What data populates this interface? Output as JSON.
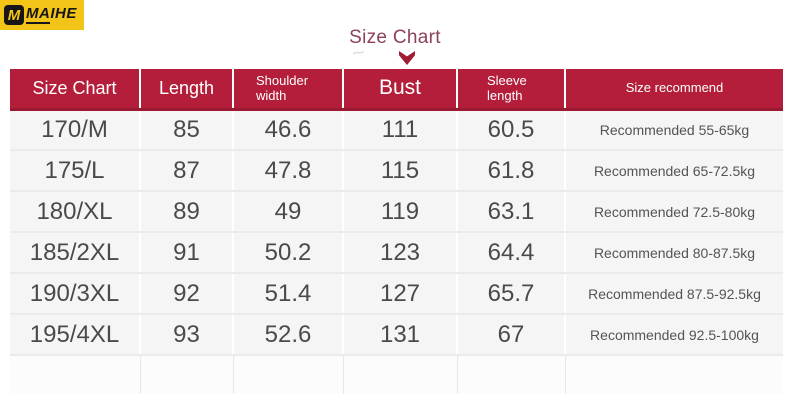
{
  "brand": {
    "logo_letter": "M",
    "logo_text": "MAIHE"
  },
  "title": "Size Chart",
  "watermark_glyph": "~",
  "chart_data": {
    "type": "table",
    "title": "Size Chart",
    "columns": [
      "Size Chart",
      "Length",
      "Shoulder width",
      "Bust",
      "Sleeve length",
      "Size recommend"
    ],
    "rows": [
      [
        "170/M",
        "85",
        "46.6",
        "111",
        "60.5",
        "Recommended 55-65kg"
      ],
      [
        "175/L",
        "87",
        "47.8",
        "115",
        "61.8",
        "Recommended 65-72.5kg"
      ],
      [
        "180/XL",
        "89",
        "49",
        "119",
        "63.1",
        "Recommended 72.5-80kg"
      ],
      [
        "185/2XL",
        "91",
        "50.2",
        "123",
        "64.4",
        "Recommended 80-87.5kg"
      ],
      [
        "190/3XL",
        "92",
        "51.4",
        "127",
        "65.7",
        "Recommended 87.5-92.5kg"
      ],
      [
        "195/4XL",
        "93",
        "52.6",
        "131",
        "67",
        "Recommended 92.5-100kg"
      ]
    ]
  },
  "colors": {
    "header_bg": "#B41E3B",
    "title_text": "#8C4258",
    "logo_bg": "#F2C417",
    "arrow": "#A21C32",
    "row_bg": "#F5F5F6"
  }
}
